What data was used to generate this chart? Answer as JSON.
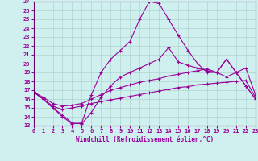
{
  "xlabel": "Windchill (Refroidissement éolien,°C)",
  "xlim": [
    0,
    23
  ],
  "ylim": [
    13,
    27
  ],
  "xticks": [
    0,
    1,
    2,
    3,
    4,
    5,
    6,
    7,
    8,
    9,
    10,
    11,
    12,
    13,
    14,
    15,
    16,
    17,
    18,
    19,
    20,
    21,
    22,
    23
  ],
  "yticks": [
    13,
    14,
    15,
    16,
    17,
    18,
    19,
    20,
    21,
    22,
    23,
    24,
    25,
    26,
    27
  ],
  "bg_color": "#cff0ee",
  "grid_color": "#aed4d0",
  "line_color": "#990099",
  "spine_color": "#660066",
  "lines": [
    {
      "x": [
        0,
        1,
        2,
        3,
        4,
        5,
        6,
        7,
        8,
        9,
        10,
        11,
        12,
        13,
        14,
        15,
        16,
        17,
        18,
        19,
        20,
        21,
        22,
        23
      ],
      "y": [
        16.8,
        16.0,
        15.0,
        14.0,
        13.2,
        13.3,
        16.5,
        19.0,
        20.5,
        21.5,
        22.5,
        25.0,
        27.0,
        26.8,
        25.0,
        23.2,
        21.5,
        20.0,
        19.0,
        19.0,
        20.5,
        19.0,
        17.5,
        16.0
      ]
    },
    {
      "x": [
        0,
        1,
        2,
        3,
        4,
        5,
        6,
        7,
        8,
        9,
        10,
        11,
        12,
        13,
        14,
        15,
        16,
        17,
        18,
        19,
        20,
        21,
        22,
        23
      ],
      "y": [
        16.8,
        16.0,
        15.0,
        14.2,
        13.3,
        13.2,
        14.5,
        16.2,
        17.5,
        18.5,
        19.0,
        19.5,
        20.0,
        20.5,
        21.8,
        20.2,
        19.8,
        19.5,
        19.2,
        19.0,
        20.5,
        19.0,
        17.5,
        16.0
      ]
    },
    {
      "x": [
        0,
        1,
        2,
        3,
        4,
        5,
        6,
        7,
        8,
        9,
        10,
        11,
        12,
        13,
        14,
        15,
        16,
        17,
        18,
        19,
        20,
        21,
        22,
        23
      ],
      "y": [
        16.8,
        16.2,
        15.5,
        15.2,
        15.3,
        15.5,
        16.0,
        16.5,
        17.0,
        17.3,
        17.6,
        17.9,
        18.1,
        18.3,
        18.6,
        18.8,
        19.0,
        19.2,
        19.4,
        19.0,
        18.5,
        19.0,
        19.5,
        16.5
      ]
    },
    {
      "x": [
        0,
        1,
        2,
        3,
        4,
        5,
        6,
        7,
        8,
        9,
        10,
        11,
        12,
        13,
        14,
        15,
        16,
        17,
        18,
        19,
        20,
        21,
        22,
        23
      ],
      "y": [
        16.8,
        16.0,
        15.2,
        14.8,
        15.0,
        15.2,
        15.5,
        15.7,
        15.9,
        16.1,
        16.3,
        16.5,
        16.7,
        16.9,
        17.1,
        17.3,
        17.4,
        17.6,
        17.7,
        17.8,
        17.9,
        18.0,
        18.1,
        16.2
      ]
    }
  ],
  "marker": "+",
  "markersize": 3,
  "linewidth": 0.8,
  "tick_fontsize": 5,
  "xlabel_fontsize": 5.5
}
